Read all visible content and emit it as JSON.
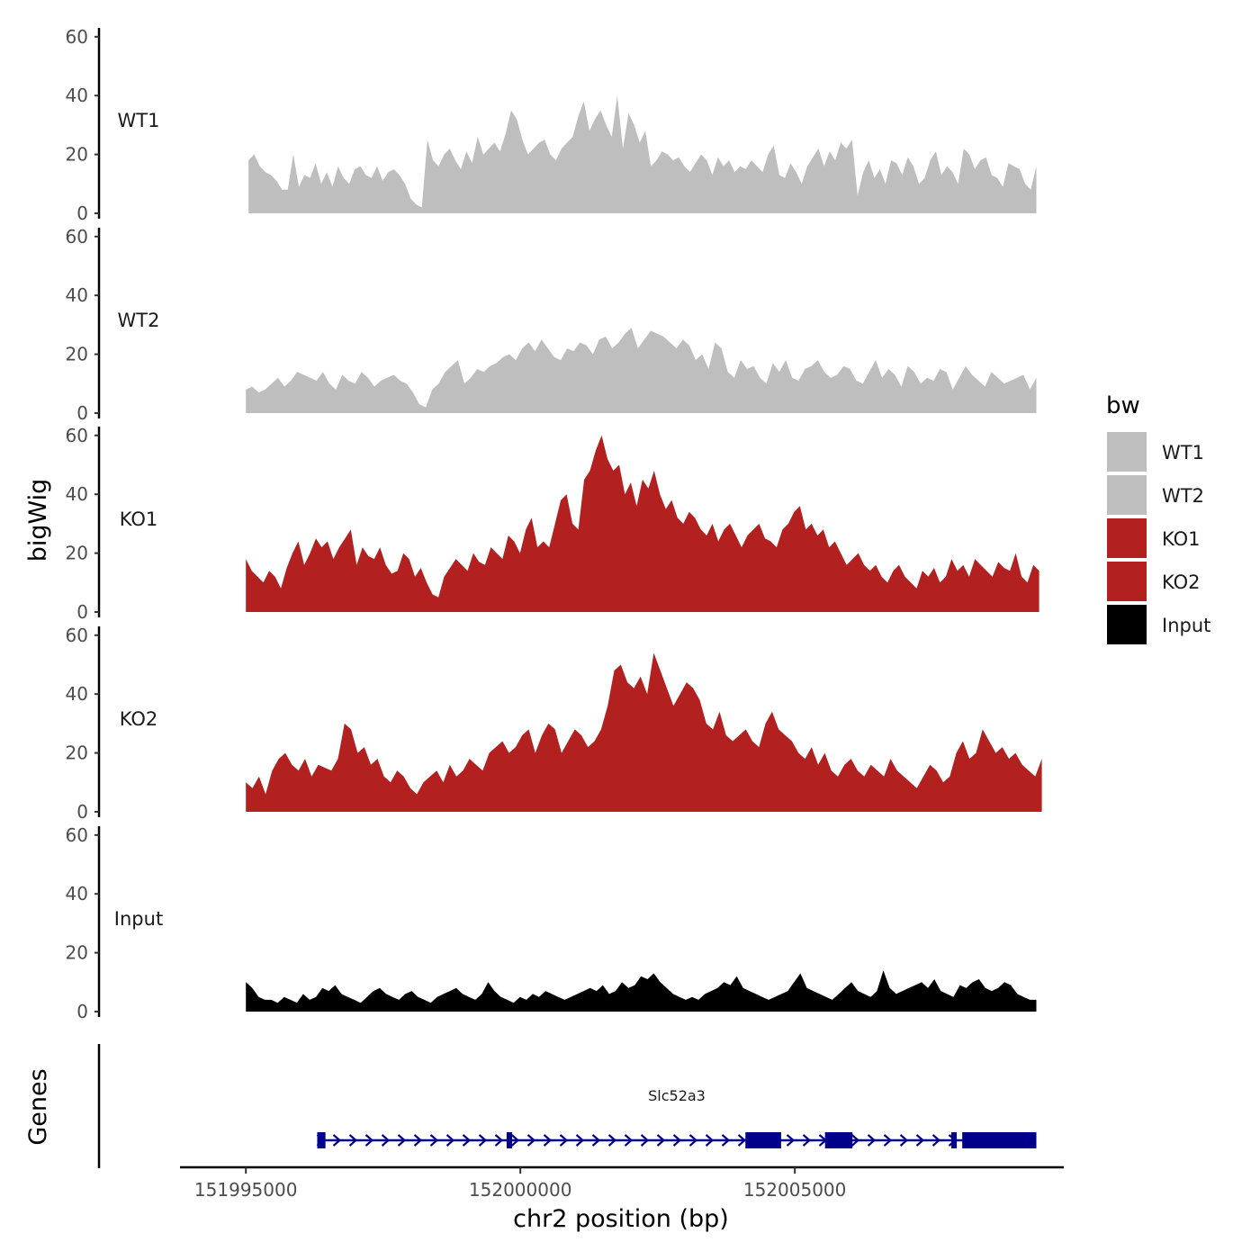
{
  "chart_data": {
    "type": "area",
    "title": "",
    "xlabel": "chr2 position (bp)",
    "ylabel": "bigWig",
    "genes_label": "Genes",
    "xlim": [
      151993800,
      152009900
    ],
    "x_ticks": [
      151995000,
      152000000,
      152005000
    ],
    "x_tick_labels": [
      "151995000",
      "152000000",
      "152005000"
    ],
    "ylim": [
      0,
      63
    ],
    "y_ticks": [
      0,
      20,
      40,
      60
    ],
    "y_tick_labels": [
      "0",
      "20",
      "40",
      "60"
    ],
    "grid": false,
    "legend": {
      "title": "bw",
      "position": "right",
      "entries": [
        {
          "label": "WT1",
          "color": "#bebebe"
        },
        {
          "label": "WT2",
          "color": "#bebebe"
        },
        {
          "label": "KO1",
          "color": "#b22020"
        },
        {
          "label": "KO2",
          "color": "#b22020"
        },
        {
          "label": "Input",
          "color": "#000000"
        }
      ]
    },
    "series": [
      {
        "name": "WT1",
        "color": "#bebebe",
        "x_start": 151995050,
        "x_end": 152009400,
        "values": [
          18,
          20,
          16,
          14,
          13,
          11,
          8,
          8,
          20,
          9,
          13,
          12,
          17,
          10,
          14,
          9,
          16,
          12,
          10,
          15,
          16,
          13,
          12,
          16,
          11,
          14,
          15,
          13,
          10,
          5,
          3,
          2,
          25,
          18,
          16,
          20,
          22,
          18,
          15,
          21,
          17,
          26,
          20,
          22,
          24,
          21,
          27,
          35,
          32,
          25,
          20,
          22,
          24,
          25,
          20,
          18,
          22,
          24,
          26,
          33,
          38,
          28,
          32,
          35,
          30,
          26,
          40,
          22,
          34,
          30,
          24,
          28,
          16,
          18,
          21,
          20,
          18,
          19,
          16,
          14,
          17,
          20,
          18,
          13,
          19,
          16,
          18,
          14,
          16,
          15,
          18,
          16,
          14,
          20,
          23,
          13,
          12,
          17,
          14,
          10,
          16,
          19,
          22,
          16,
          21,
          18,
          24,
          22,
          25,
          6,
          14,
          18,
          12,
          15,
          10,
          18,
          17,
          13,
          19,
          16,
          10,
          12,
          18,
          21,
          13,
          16,
          14,
          10,
          22,
          20,
          15,
          18,
          19,
          13,
          12,
          9,
          17,
          16,
          15,
          10,
          8,
          16
        ]
      },
      {
        "name": "WT2",
        "color": "#bebebe",
        "x_start": 151995000,
        "x_end": 152009400,
        "values": [
          8,
          9,
          7,
          8,
          10,
          12,
          9,
          11,
          14,
          13,
          12,
          11,
          14,
          10,
          8,
          13,
          11,
          10,
          14,
          12,
          9,
          11,
          12,
          13,
          11,
          10,
          7,
          3,
          2,
          8,
          10,
          14,
          16,
          18,
          10,
          12,
          15,
          14,
          16,
          17,
          19,
          20,
          18,
          22,
          24,
          21,
          25,
          22,
          19,
          18,
          22,
          21,
          24,
          23,
          20,
          25,
          26,
          22,
          24,
          27,
          29,
          22,
          25,
          28,
          27,
          26,
          24,
          22,
          25,
          23,
          18,
          20,
          15,
          24,
          22,
          14,
          12,
          18,
          15,
          16,
          12,
          10,
          17,
          14,
          18,
          12,
          11,
          15,
          16,
          18,
          14,
          12,
          13,
          16,
          15,
          11,
          10,
          14,
          18,
          12,
          15,
          13,
          9,
          16,
          14,
          10,
          12,
          11,
          15,
          14,
          8,
          12,
          16,
          13,
          11,
          9,
          14,
          12,
          10,
          11,
          12,
          13,
          8,
          12
        ]
      },
      {
        "name": "KO1",
        "color": "#b22020",
        "x_start": 151995000,
        "x_end": 152009450,
        "values": [
          18,
          14,
          12,
          10,
          14,
          12,
          8,
          15,
          20,
          24,
          16,
          20,
          25,
          22,
          24,
          18,
          22,
          25,
          28,
          16,
          22,
          19,
          18,
          22,
          16,
          13,
          14,
          20,
          18,
          12,
          15,
          10,
          6,
          5,
          12,
          15,
          18,
          16,
          14,
          20,
          17,
          16,
          22,
          20,
          18,
          26,
          24,
          20,
          28,
          32,
          22,
          24,
          22,
          30,
          38,
          40,
          30,
          28,
          45,
          48,
          55,
          60,
          52,
          48,
          50,
          40,
          44,
          36,
          45,
          42,
          48,
          40,
          35,
          38,
          32,
          30,
          34,
          32,
          28,
          26,
          30,
          24,
          28,
          30,
          26,
          22,
          26,
          28,
          30,
          25,
          24,
          22,
          28,
          30,
          34,
          36,
          28,
          30,
          26,
          28,
          22,
          24,
          20,
          16,
          18,
          20,
          16,
          14,
          16,
          12,
          10,
          14,
          16,
          12,
          10,
          8,
          14,
          12,
          15,
          10,
          12,
          18,
          14,
          16,
          12,
          18,
          16,
          14,
          12,
          17,
          15,
          14,
          20,
          12,
          10,
          16,
          14
        ]
      },
      {
        "name": "KO2",
        "color": "#b22020",
        "x_start": 151995000,
        "x_end": 152009500,
        "values": [
          10,
          8,
          12,
          6,
          14,
          18,
          20,
          16,
          14,
          18,
          12,
          16,
          15,
          14,
          18,
          30,
          28,
          20,
          22,
          16,
          18,
          12,
          10,
          14,
          12,
          8,
          6,
          10,
          12,
          14,
          10,
          16,
          12,
          14,
          18,
          16,
          14,
          20,
          22,
          24,
          20,
          22,
          26,
          28,
          20,
          26,
          30,
          28,
          20,
          24,
          28,
          26,
          22,
          24,
          28,
          36,
          48,
          50,
          44,
          42,
          46,
          40,
          54,
          48,
          42,
          36,
          40,
          44,
          42,
          38,
          30,
          28,
          34,
          26,
          24,
          26,
          28,
          24,
          22,
          30,
          34,
          28,
          26,
          24,
          20,
          18,
          22,
          16,
          20,
          14,
          12,
          16,
          18,
          14,
          12,
          16,
          14,
          12,
          18,
          14,
          12,
          10,
          8,
          12,
          16,
          14,
          10,
          12,
          20,
          24,
          18,
          20,
          28,
          24,
          20,
          22,
          18,
          20,
          16,
          14,
          12,
          18
        ]
      },
      {
        "name": "Input",
        "color": "#000000",
        "x_start": 151995000,
        "x_end": 152009400,
        "values": [
          10,
          8,
          5,
          4,
          4,
          3,
          5,
          4,
          3,
          6,
          4,
          5,
          8,
          7,
          9,
          6,
          5,
          4,
          3,
          5,
          7,
          8,
          6,
          5,
          4,
          6,
          7,
          5,
          4,
          3,
          5,
          6,
          7,
          8,
          6,
          5,
          4,
          6,
          10,
          7,
          5,
          4,
          3,
          5,
          4,
          6,
          5,
          7,
          6,
          5,
          4,
          5,
          6,
          7,
          8,
          7,
          9,
          6,
          7,
          10,
          8,
          9,
          12,
          11,
          13,
          10,
          8,
          6,
          5,
          4,
          5,
          4,
          6,
          7,
          8,
          10,
          9,
          12,
          8,
          7,
          6,
          5,
          4,
          5,
          6,
          7,
          10,
          13,
          8,
          7,
          6,
          5,
          4,
          6,
          8,
          10,
          7,
          6,
          5,
          7,
          14,
          8,
          6,
          7,
          8,
          9,
          10,
          8,
          11,
          7,
          6,
          5,
          9,
          8,
          10,
          11,
          8,
          7,
          8,
          10,
          9,
          6,
          5,
          4,
          4
        ]
      }
    ],
    "gene": {
      "name": "Slc52a3",
      "color": "#00008b",
      "strand": "+",
      "start": 151996300,
      "end": 152009400,
      "exons": [
        {
          "start": 151996300,
          "end": 151996450,
          "kind": "utr"
        },
        {
          "start": 151999750,
          "end": 151999850,
          "kind": "utr"
        },
        {
          "start": 152004100,
          "end": 152004750,
          "kind": "cds"
        },
        {
          "start": 152005550,
          "end": 152006050,
          "kind": "cds"
        },
        {
          "start": 152007850,
          "end": 152007950,
          "kind": "utr"
        },
        {
          "start": 152008050,
          "end": 152009400,
          "kind": "cds"
        }
      ]
    }
  }
}
